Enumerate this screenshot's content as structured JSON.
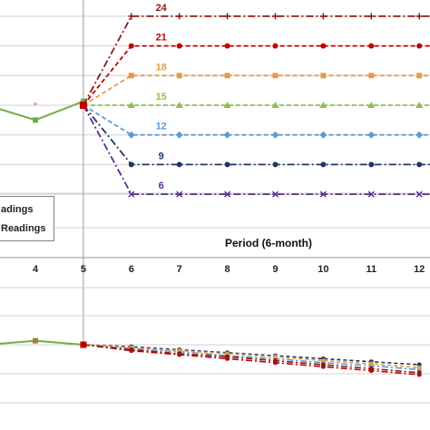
{
  "chart_data": [
    {
      "type": "line",
      "title": "",
      "xlabel": "Period (6-month)",
      "ylabel": "",
      "x_ticks": [
        4,
        5,
        6,
        7,
        8,
        9,
        10,
        11,
        12
      ],
      "grid": true,
      "legend": {
        "placement": "lower-left",
        "entries": [
          "adings",
          "Readings"
        ]
      },
      "history": {
        "name": "",
        "color": "#70ad47",
        "points": [
          [
            3,
            15
          ],
          [
            4,
            13.5
          ],
          [
            5,
            15.4
          ]
        ]
      },
      "history_marker": {
        "x": 4,
        "y": 15,
        "color": "#e06070"
      },
      "series": [
        {
          "name": "24",
          "color": "#8b1a1a",
          "value": 24,
          "marker": "plus",
          "dash": "dashdot"
        },
        {
          "name": "21",
          "color": "#c00000",
          "value": 21,
          "marker": "circle",
          "dash": "dash"
        },
        {
          "name": "18",
          "color": "#e69a47",
          "value": 18,
          "marker": "square",
          "dash": "dash"
        },
        {
          "name": "15",
          "color": "#8cbf4f",
          "value": 15,
          "marker": "triangle",
          "dash": "dash"
        },
        {
          "name": "12",
          "color": "#5b9bd5",
          "value": 12,
          "marker": "diamond",
          "dash": "dash"
        },
        {
          "name": "9",
          "color": "#1f3864",
          "value": 9,
          "marker": "circle",
          "dash": "dashdot"
        },
        {
          "name": "6",
          "color": "#5b2c8f",
          "value": 6,
          "marker": "x",
          "dash": "dashdot"
        }
      ]
    },
    {
      "type": "line",
      "title": "",
      "xlabel": "",
      "ylabel": "",
      "grid": true,
      "history": {
        "name": "",
        "color": "#70ad47",
        "points": [
          [
            3,
            0
          ],
          [
            4,
            0.2
          ],
          [
            5,
            0
          ]
        ]
      },
      "series": [
        {
          "name": "",
          "color": "#c00000",
          "points": [
            [
              5,
              0
            ],
            [
              6,
              -0.3
            ],
            [
              7,
              -0.5
            ],
            [
              8,
              -0.7
            ],
            [
              9,
              -0.9
            ],
            [
              10,
              -1.1
            ],
            [
              11,
              -1.3
            ],
            [
              12,
              -1.5
            ]
          ]
        },
        {
          "name": "",
          "color": "#1f3864",
          "points": [
            [
              5,
              0
            ],
            [
              6,
              -0.1
            ],
            [
              7,
              -0.25
            ],
            [
              8,
              -0.4
            ],
            [
              9,
              -0.55
            ],
            [
              10,
              -0.7
            ],
            [
              11,
              -0.85
            ],
            [
              12,
              -1.0
            ]
          ]
        },
        {
          "name": "",
          "color": "#5b9bd5",
          "points": [
            [
              5,
              0
            ],
            [
              6,
              -0.2
            ],
            [
              7,
              -0.35
            ],
            [
              8,
              -0.55
            ],
            [
              9,
              -0.7
            ],
            [
              10,
              -0.9
            ],
            [
              11,
              -1.05
            ],
            [
              12,
              -1.25
            ]
          ]
        },
        {
          "name": "",
          "color": "#e69a47",
          "points": [
            [
              5,
              0
            ],
            [
              6,
              -0.15
            ],
            [
              7,
              -0.3
            ],
            [
              8,
              -0.45
            ],
            [
              9,
              -0.6
            ],
            [
              10,
              -0.8
            ],
            [
              11,
              -0.95
            ],
            [
              12,
              -1.15
            ]
          ]
        },
        {
          "name": "",
          "color": "#8b1a1a",
          "points": [
            [
              5,
              0
            ],
            [
              6,
              -0.25
            ],
            [
              7,
              -0.45
            ],
            [
              8,
              -0.6
            ],
            [
              9,
              -0.8
            ],
            [
              10,
              -1.0
            ],
            [
              11,
              -1.2
            ],
            [
              12,
              -1.4
            ]
          ]
        }
      ]
    }
  ]
}
